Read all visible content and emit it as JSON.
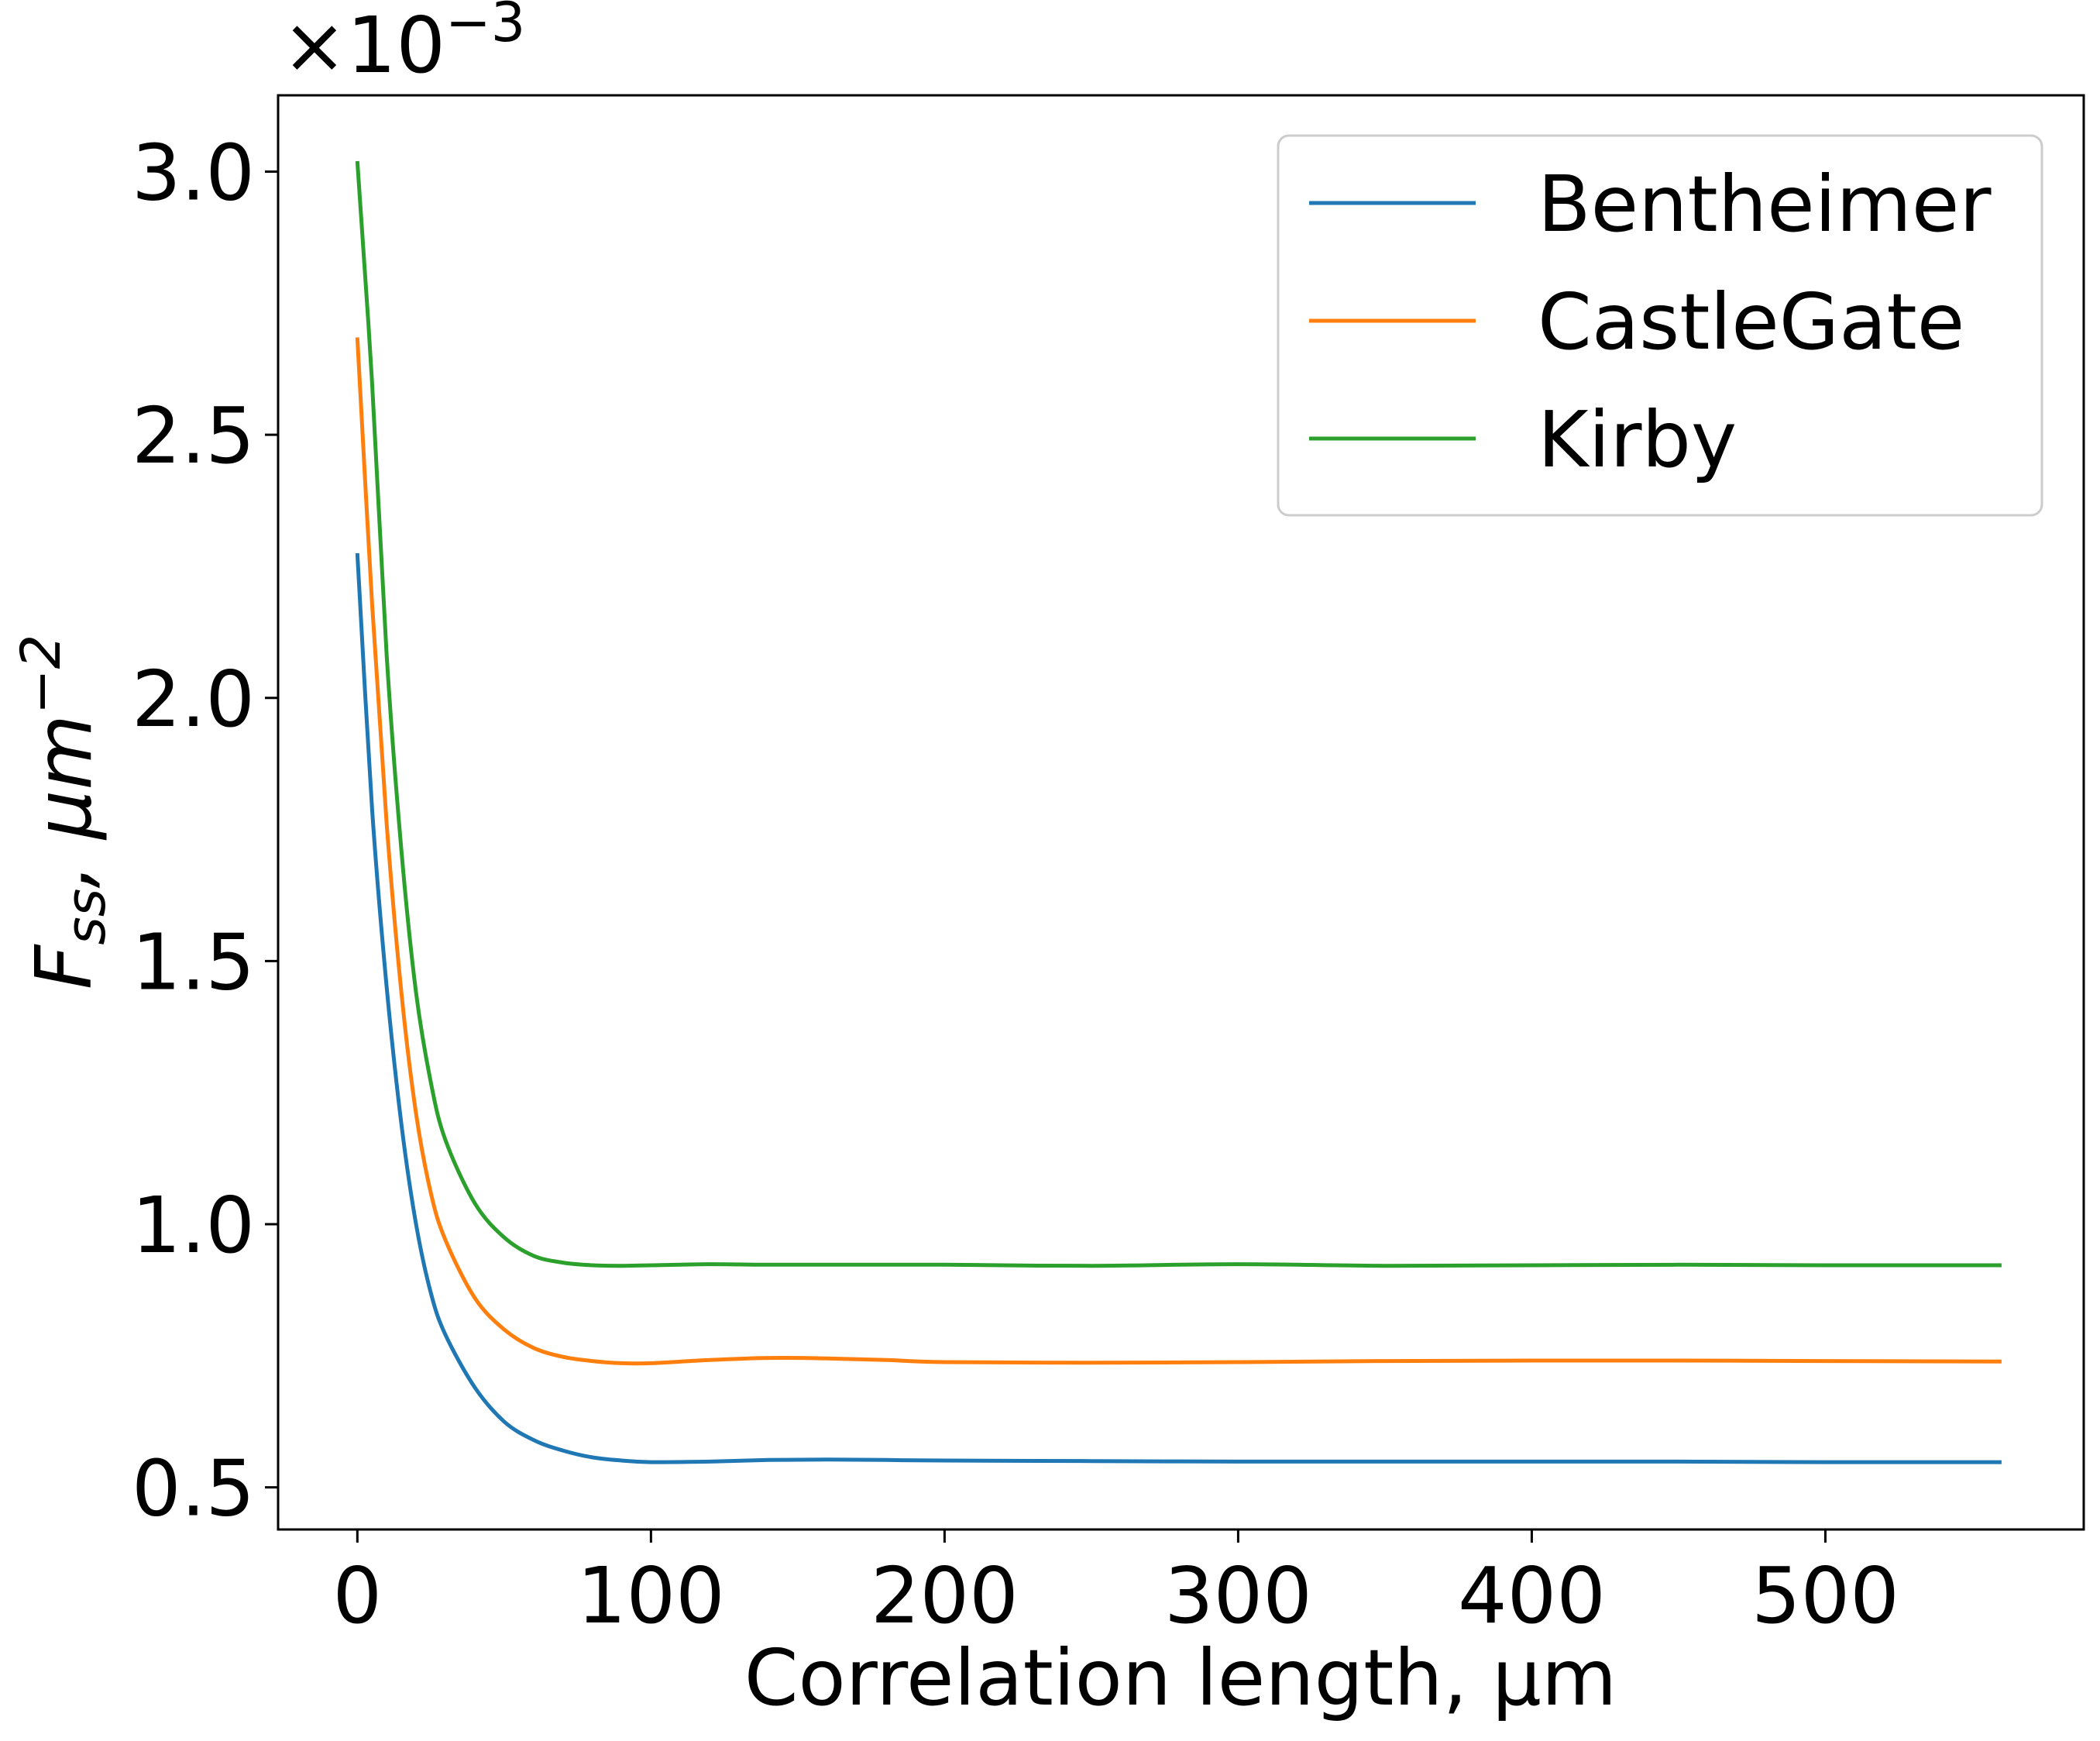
{
  "chart_data": {
    "type": "line",
    "title": "",
    "xlabel": "Correlation length, µm",
    "ylabel_main": "F",
    "ylabel_sub": "ss",
    "ylabel_rest": ", µm",
    "ylabel_sup": "−2",
    "offset_text": "×10",
    "offset_exp": "−3",
    "xlim": [
      -27,
      588
    ],
    "ylim": [
      0.42,
      3.145
    ],
    "x_ticks": [
      0,
      100,
      200,
      300,
      400,
      500
    ],
    "x_tick_labels": [
      "0",
      "100",
      "200",
      "300",
      "400",
      "500"
    ],
    "y_ticks": [
      0.5,
      1.0,
      1.5,
      2.0,
      2.5,
      3.0
    ],
    "y_tick_labels": [
      "0.5",
      "1.0",
      "1.5",
      "2.0",
      "2.5",
      "3.0"
    ],
    "grid": false,
    "legend": "top-right",
    "series": [
      {
        "name": "Bentheimer",
        "color": "#1f77b4",
        "x": [
          0,
          5,
          10,
          15,
          20,
          25,
          30,
          40,
          50,
          60,
          70,
          80,
          90,
          100,
          120,
          140,
          160,
          180,
          200,
          250,
          300,
          350,
          400,
          450,
          500,
          560
        ],
        "values": [
          2.275,
          1.79,
          1.45,
          1.19,
          1.0,
          0.87,
          0.79,
          0.69,
          0.625,
          0.59,
          0.57,
          0.557,
          0.551,
          0.548,
          0.549,
          0.552,
          0.553,
          0.552,
          0.551,
          0.55,
          0.549,
          0.549,
          0.549,
          0.549,
          0.548,
          0.548
        ]
      },
      {
        "name": "CastleGate",
        "color": "#ff7f0e",
        "x": [
          0,
          5,
          10,
          15,
          20,
          25,
          30,
          40,
          50,
          60,
          70,
          80,
          90,
          100,
          120,
          140,
          160,
          180,
          200,
          250,
          300,
          350,
          400,
          450,
          500,
          560
        ],
        "values": [
          2.685,
          2.18,
          1.76,
          1.44,
          1.21,
          1.06,
          0.97,
          0.86,
          0.8,
          0.765,
          0.748,
          0.74,
          0.736,
          0.736,
          0.742,
          0.746,
          0.745,
          0.742,
          0.738,
          0.737,
          0.738,
          0.74,
          0.741,
          0.741,
          0.74,
          0.739
        ]
      },
      {
        "name": "Kirby",
        "color": "#2ca02c",
        "x": [
          0,
          5,
          10,
          15,
          20,
          25,
          30,
          40,
          50,
          60,
          70,
          80,
          90,
          100,
          120,
          140,
          160,
          180,
          200,
          250,
          300,
          350,
          400,
          450,
          500,
          560
        ],
        "values": [
          3.02,
          2.6,
          2.08,
          1.71,
          1.44,
          1.27,
          1.16,
          1.04,
          0.975,
          0.94,
          0.927,
          0.922,
          0.921,
          0.922,
          0.924,
          0.923,
          0.923,
          0.923,
          0.923,
          0.921,
          0.924,
          0.921,
          0.922,
          0.923,
          0.922,
          0.922
        ]
      }
    ]
  }
}
